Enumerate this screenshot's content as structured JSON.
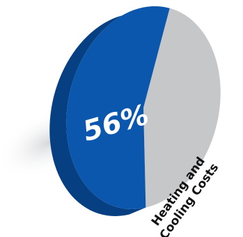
{
  "chart_data": {
    "type": "pie",
    "title": "",
    "slices": [
      {
        "label": "Heating and Cooling Costs",
        "value": 56,
        "display": "56%",
        "color": "#0b57ad"
      },
      {
        "label": "",
        "value": 44,
        "display": "",
        "color": "#c6c7c9"
      }
    ],
    "label_lines": [
      "Heating and",
      "Cooling Costs"
    ],
    "legend": "none",
    "style": "3d-tilted"
  }
}
